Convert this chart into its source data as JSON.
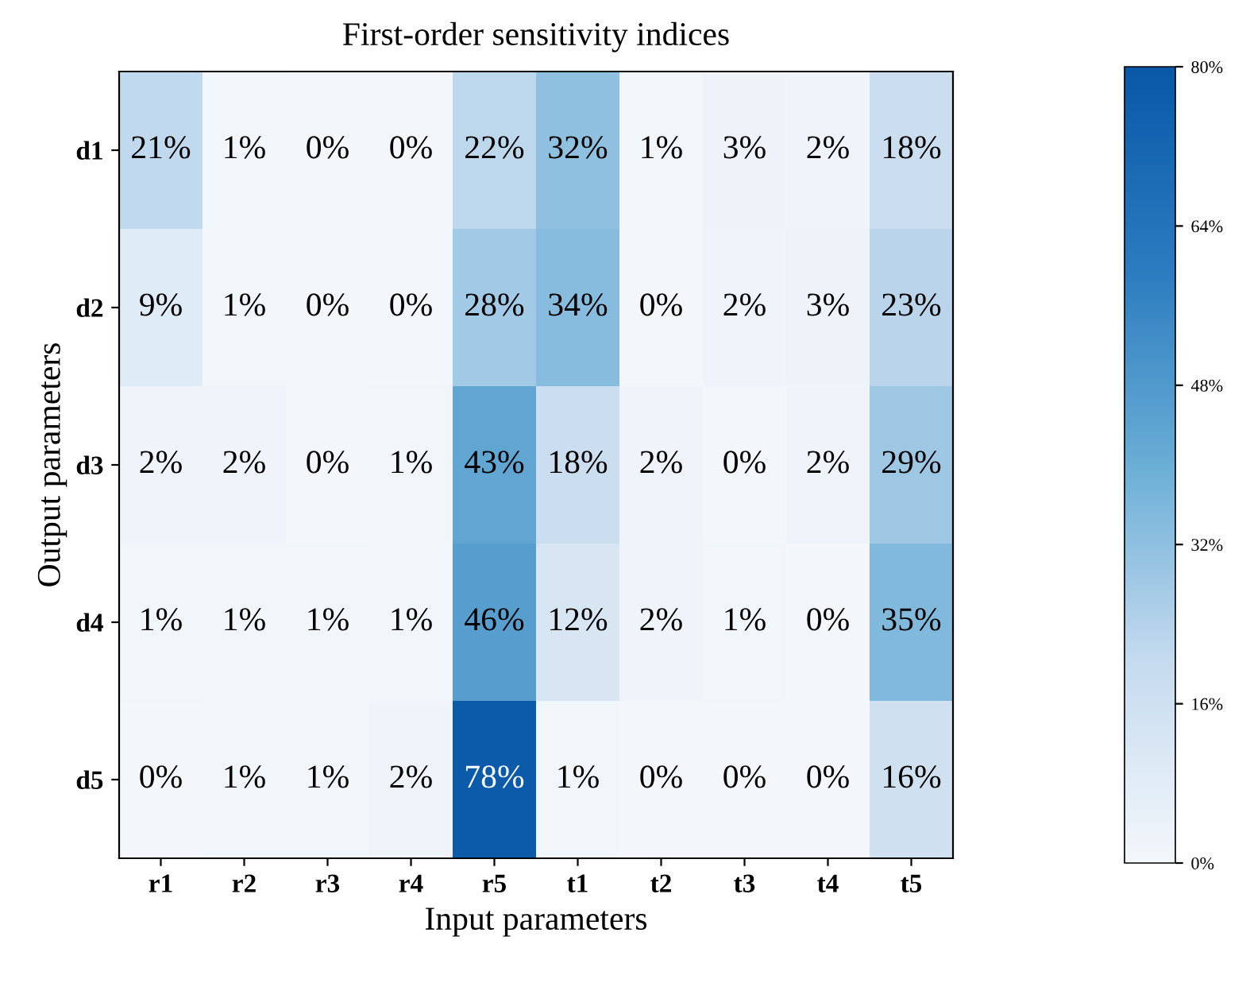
{
  "chart_data": {
    "type": "heatmap",
    "title": "First-order sensitivity indices",
    "xlabel": "Input parameters",
    "ylabel": "Output parameters",
    "categories": [
      "r1",
      "r2",
      "r3",
      "r4",
      "r5",
      "t1",
      "t2",
      "t3",
      "t4",
      "t5"
    ],
    "y_categories": [
      "d1",
      "d2",
      "d3",
      "d4",
      "d5"
    ],
    "cells": [
      [
        21,
        1,
        0,
        0,
        22,
        32,
        1,
        3,
        2,
        18
      ],
      [
        9,
        1,
        0,
        0,
        28,
        34,
        0,
        2,
        3,
        23
      ],
      [
        2,
        2,
        0,
        1,
        43,
        18,
        2,
        0,
        2,
        29
      ],
      [
        1,
        1,
        1,
        1,
        46,
        12,
        2,
        1,
        0,
        35
      ],
      [
        0,
        1,
        1,
        2,
        78,
        1,
        0,
        0,
        0,
        16
      ]
    ],
    "cell_labels": [
      [
        "21%",
        "1%",
        "0%",
        "0%",
        "22%",
        "32%",
        "1%",
        "3%",
        "2%",
        "18%"
      ],
      [
        "9%",
        "1%",
        "0%",
        "0%",
        "28%",
        "34%",
        "0%",
        "2%",
        "3%",
        "23%"
      ],
      [
        "2%",
        "2%",
        "0%",
        "1%",
        "43%",
        "18%",
        "2%",
        "0%",
        "2%",
        "29%"
      ],
      [
        "1%",
        "1%",
        "1%",
        "1%",
        "46%",
        "12%",
        "2%",
        "1%",
        "0%",
        "35%"
      ],
      [
        "0%",
        "1%",
        "1%",
        "2%",
        "78%",
        "1%",
        "0%",
        "0%",
        "0%",
        "16%"
      ]
    ],
    "clim": [
      0,
      80
    ],
    "cticks": [
      {
        "value": 0,
        "label": "0%"
      },
      {
        "value": 16,
        "label": "16%"
      },
      {
        "value": 32,
        "label": "32%"
      },
      {
        "value": 48,
        "label": "48%"
      },
      {
        "value": 64,
        "label": "64%"
      },
      {
        "value": 80,
        "label": "80%"
      }
    ]
  }
}
